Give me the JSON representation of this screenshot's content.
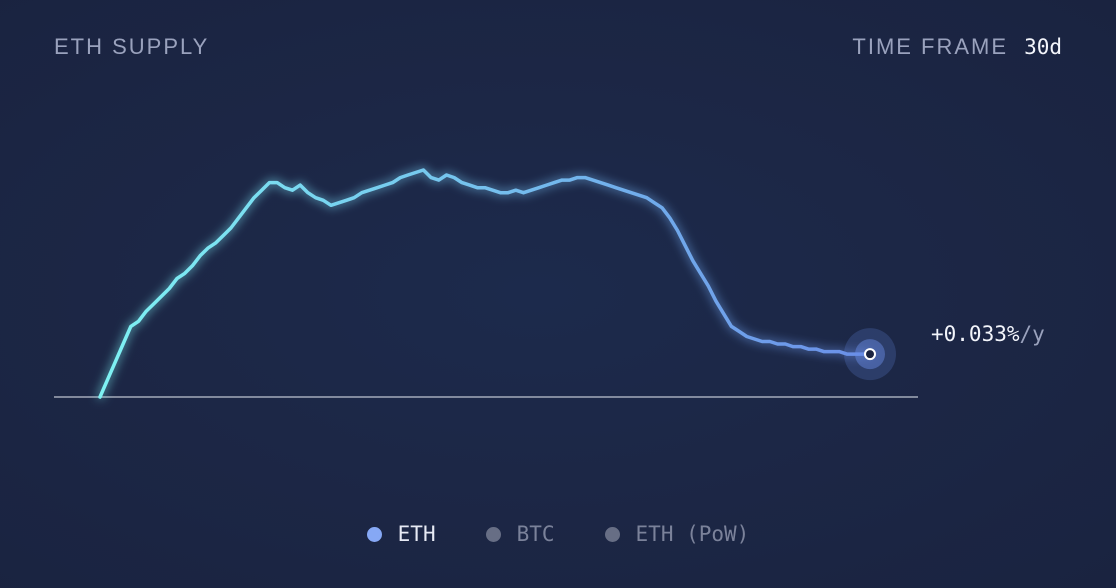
{
  "header": {
    "title": "ETH SUPPLY",
    "timeframe_label": "TIME FRAME",
    "timeframe_value": "30d"
  },
  "rate": {
    "value": "+0.033%",
    "unit": "/y"
  },
  "legend": [
    {
      "label": "ETH",
      "active": true,
      "color": "#86a8f5"
    },
    {
      "label": "BTC",
      "active": false,
      "color": "#676e85"
    },
    {
      "label": "ETH (PoW)",
      "active": false,
      "color": "#676e85"
    }
  ],
  "colors": {
    "line_start": "#7ef2f3",
    "line_end": "#6b8fe8",
    "baseline": "#c8ccd8",
    "end_marker": "#6b8fe8"
  },
  "chart_data": {
    "type": "line",
    "series": [
      {
        "name": "ETH",
        "x": [
          0,
          0.3,
          0.6,
          0.9,
          1.2,
          1.5,
          1.8,
          2.1,
          2.4,
          2.7,
          3.0,
          3.3,
          3.6,
          3.9,
          4.2,
          4.5,
          4.8,
          5.1,
          5.4,
          5.7,
          6.0,
          6.3,
          6.6,
          6.9,
          7.2,
          7.5,
          7.8,
          8.1,
          8.4,
          8.7,
          9.0,
          9.3,
          9.6,
          9.9,
          10.2,
          10.5,
          10.8,
          11.1,
          11.4,
          11.7,
          12.0,
          12.3,
          12.6,
          12.9,
          13.2,
          13.5,
          13.8,
          14.1,
          14.4,
          14.7,
          15.0,
          15.3,
          15.6,
          15.9,
          16.2,
          16.5,
          16.8,
          17.1,
          17.4,
          17.7,
          18.0,
          18.3,
          18.6,
          18.9,
          19.2,
          19.5,
          19.8,
          20.1,
          20.4,
          20.7,
          21.0,
          21.3,
          21.6,
          21.9,
          22.2,
          22.5,
          22.8,
          23.1,
          23.4,
          23.7,
          24.0,
          24.3,
          24.6,
          24.9,
          25.2,
          25.5,
          25.8,
          26.1,
          26.4,
          26.7,
          27.0,
          27.3,
          27.6,
          27.9,
          28.2,
          28.5,
          28.8,
          29.1,
          29.4,
          29.7,
          30.0
        ],
        "values": [
          0.0,
          0.07,
          0.14,
          0.21,
          0.28,
          0.3,
          0.34,
          0.37,
          0.4,
          0.43,
          0.47,
          0.49,
          0.52,
          0.56,
          0.59,
          0.61,
          0.64,
          0.67,
          0.71,
          0.75,
          0.79,
          0.82,
          0.85,
          0.85,
          0.83,
          0.82,
          0.84,
          0.81,
          0.79,
          0.78,
          0.76,
          0.77,
          0.78,
          0.79,
          0.81,
          0.82,
          0.83,
          0.84,
          0.85,
          0.87,
          0.88,
          0.89,
          0.9,
          0.87,
          0.86,
          0.88,
          0.87,
          0.85,
          0.84,
          0.83,
          0.83,
          0.82,
          0.81,
          0.81,
          0.82,
          0.81,
          0.82,
          0.83,
          0.84,
          0.85,
          0.86,
          0.86,
          0.87,
          0.87,
          0.86,
          0.85,
          0.84,
          0.83,
          0.82,
          0.81,
          0.8,
          0.79,
          0.77,
          0.75,
          0.71,
          0.66,
          0.6,
          0.54,
          0.49,
          0.44,
          0.38,
          0.33,
          0.28,
          0.26,
          0.24,
          0.23,
          0.22,
          0.22,
          0.21,
          0.21,
          0.2,
          0.2,
          0.19,
          0.19,
          0.18,
          0.18,
          0.18,
          0.17,
          0.17,
          0.17,
          0.17
        ]
      }
    ],
    "baseline": 0,
    "grid": false,
    "end_label": "+0.033%/y"
  }
}
